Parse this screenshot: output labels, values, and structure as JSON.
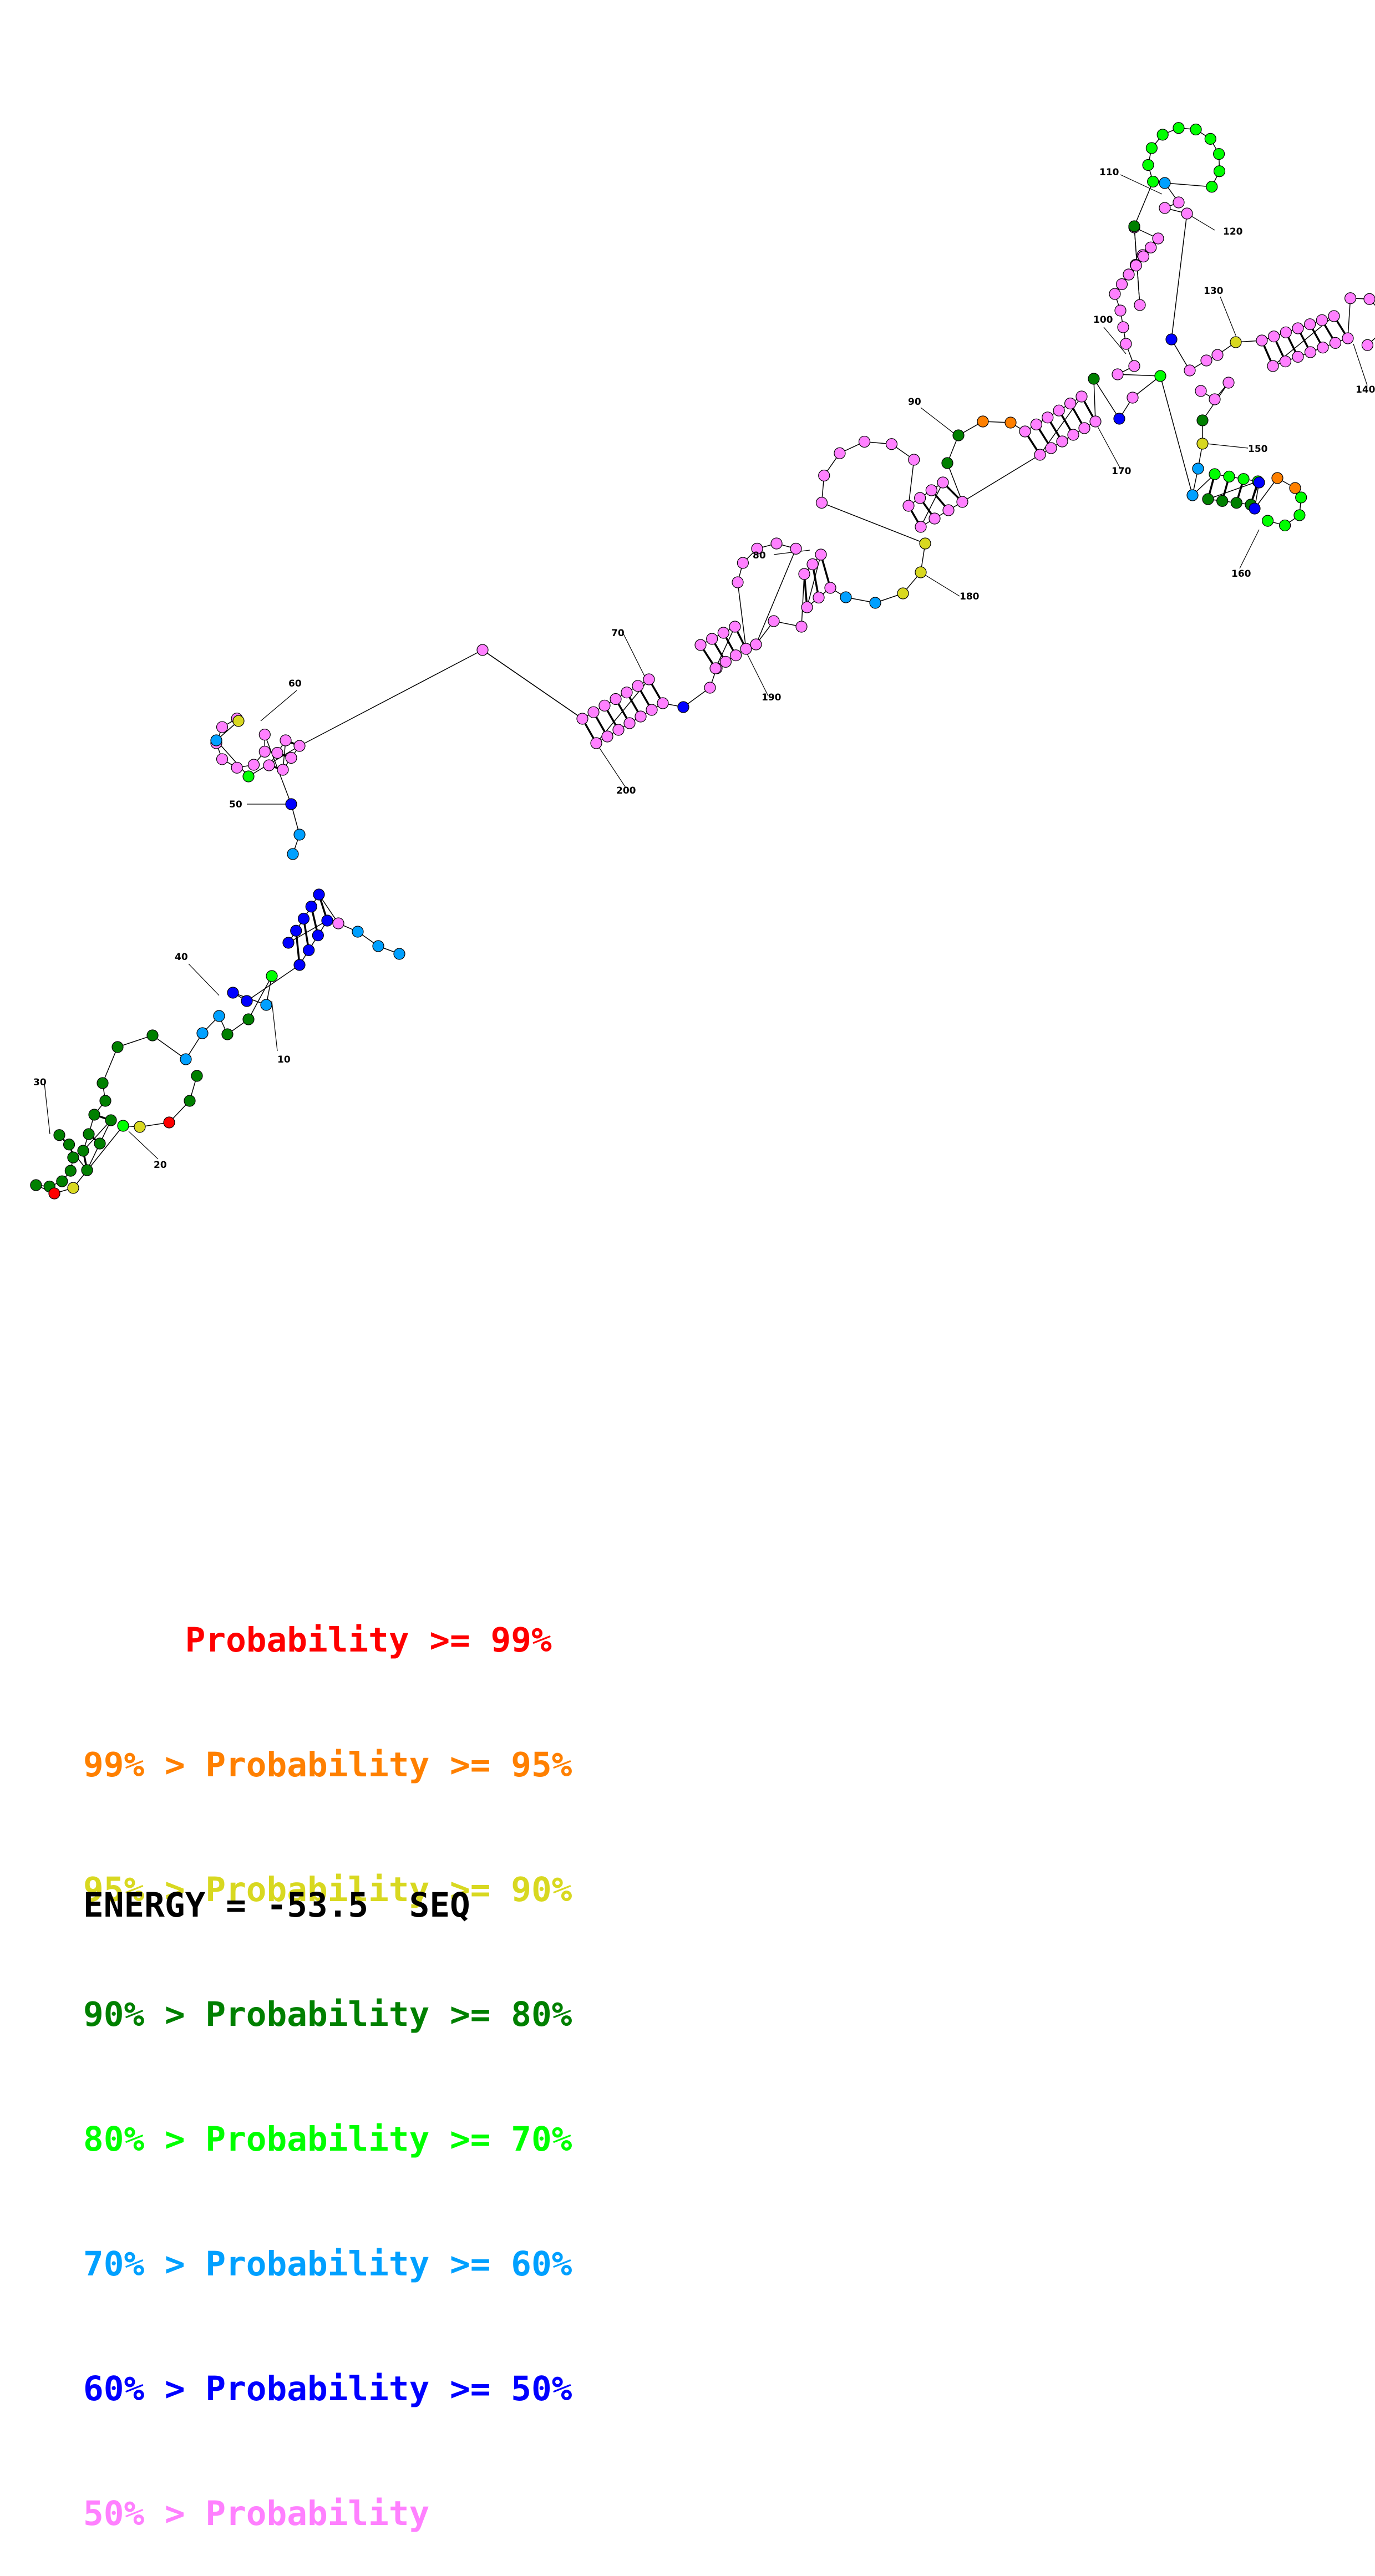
{
  "colors": {
    "p99": "#ff0000",
    "p95": "#ff8000",
    "p90": "#d8d820",
    "p80": "#008000",
    "p70": "#00ff00",
    "p60": "#00a0ff",
    "p50": "#0000ff",
    "plow": "#ff80ff"
  },
  "position_labels": [
    "10",
    "20",
    "30",
    "40",
    "50",
    "60",
    "70",
    "80",
    "90",
    "100",
    "110",
    "120",
    "130",
    "140",
    "150",
    "160",
    "170",
    "180",
    "190",
    "200"
  ],
  "legend": [
    {
      "text": "     Probability >= 99%",
      "color": "p99"
    },
    {
      "text": "99% > Probability >= 95%",
      "color": "p95"
    },
    {
      "text": "95% > Probability >= 90%",
      "color": "p90"
    },
    {
      "text": "90% > Probability >= 80%",
      "color": "p80"
    },
    {
      "text": "80% > Probability >= 70%",
      "color": "p70"
    },
    {
      "text": "70% > Probability >= 60%",
      "color": "p60"
    },
    {
      "text": "60% > Probability >= 50%",
      "color": "p50"
    },
    {
      "text": "50% > Probability",
      "color": "plow"
    }
  ],
  "energy_label": "ENERGY = -53.5  SEQ"
}
